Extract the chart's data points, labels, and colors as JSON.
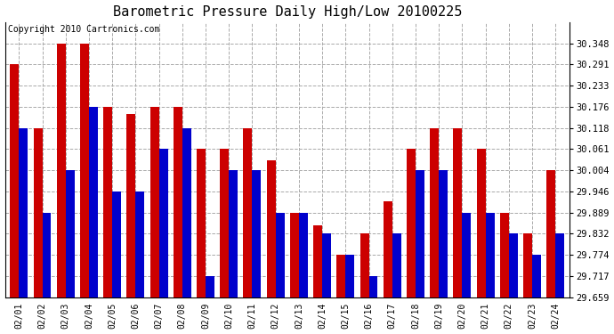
{
  "title": "Barometric Pressure Daily High/Low 20100225",
  "copyright": "Copyright 2010 Cartronics.com",
  "dates": [
    "02/01",
    "02/02",
    "02/03",
    "02/04",
    "02/05",
    "02/06",
    "02/07",
    "02/08",
    "02/09",
    "02/10",
    "02/11",
    "02/12",
    "02/13",
    "02/14",
    "02/15",
    "02/16",
    "02/17",
    "02/18",
    "02/19",
    "02/20",
    "02/21",
    "02/22",
    "02/23",
    "02/24"
  ],
  "highs": [
    30.291,
    30.118,
    30.348,
    30.348,
    30.176,
    30.155,
    30.176,
    30.176,
    30.061,
    30.061,
    30.118,
    30.03,
    29.889,
    29.855,
    29.774,
    29.832,
    29.92,
    30.061,
    30.118,
    30.118,
    30.061,
    29.889,
    29.832,
    30.004
  ],
  "lows": [
    30.118,
    29.889,
    30.004,
    30.176,
    29.946,
    29.946,
    30.061,
    30.118,
    29.717,
    30.004,
    30.004,
    29.889,
    29.889,
    29.832,
    29.774,
    29.717,
    29.832,
    30.004,
    30.004,
    29.889,
    29.889,
    29.832,
    29.774,
    29.832
  ],
  "ylim_min": 29.659,
  "ylim_max": 30.406,
  "yticks": [
    29.659,
    29.717,
    29.774,
    29.832,
    29.889,
    29.946,
    30.004,
    30.061,
    30.118,
    30.176,
    30.233,
    30.291,
    30.348
  ],
  "high_color": "#cc0000",
  "low_color": "#0000cc",
  "bg_color": "#ffffff",
  "plot_bg_color": "#ffffff",
  "grid_color": "#aaaaaa",
  "title_fontsize": 11,
  "copyright_fontsize": 7
}
